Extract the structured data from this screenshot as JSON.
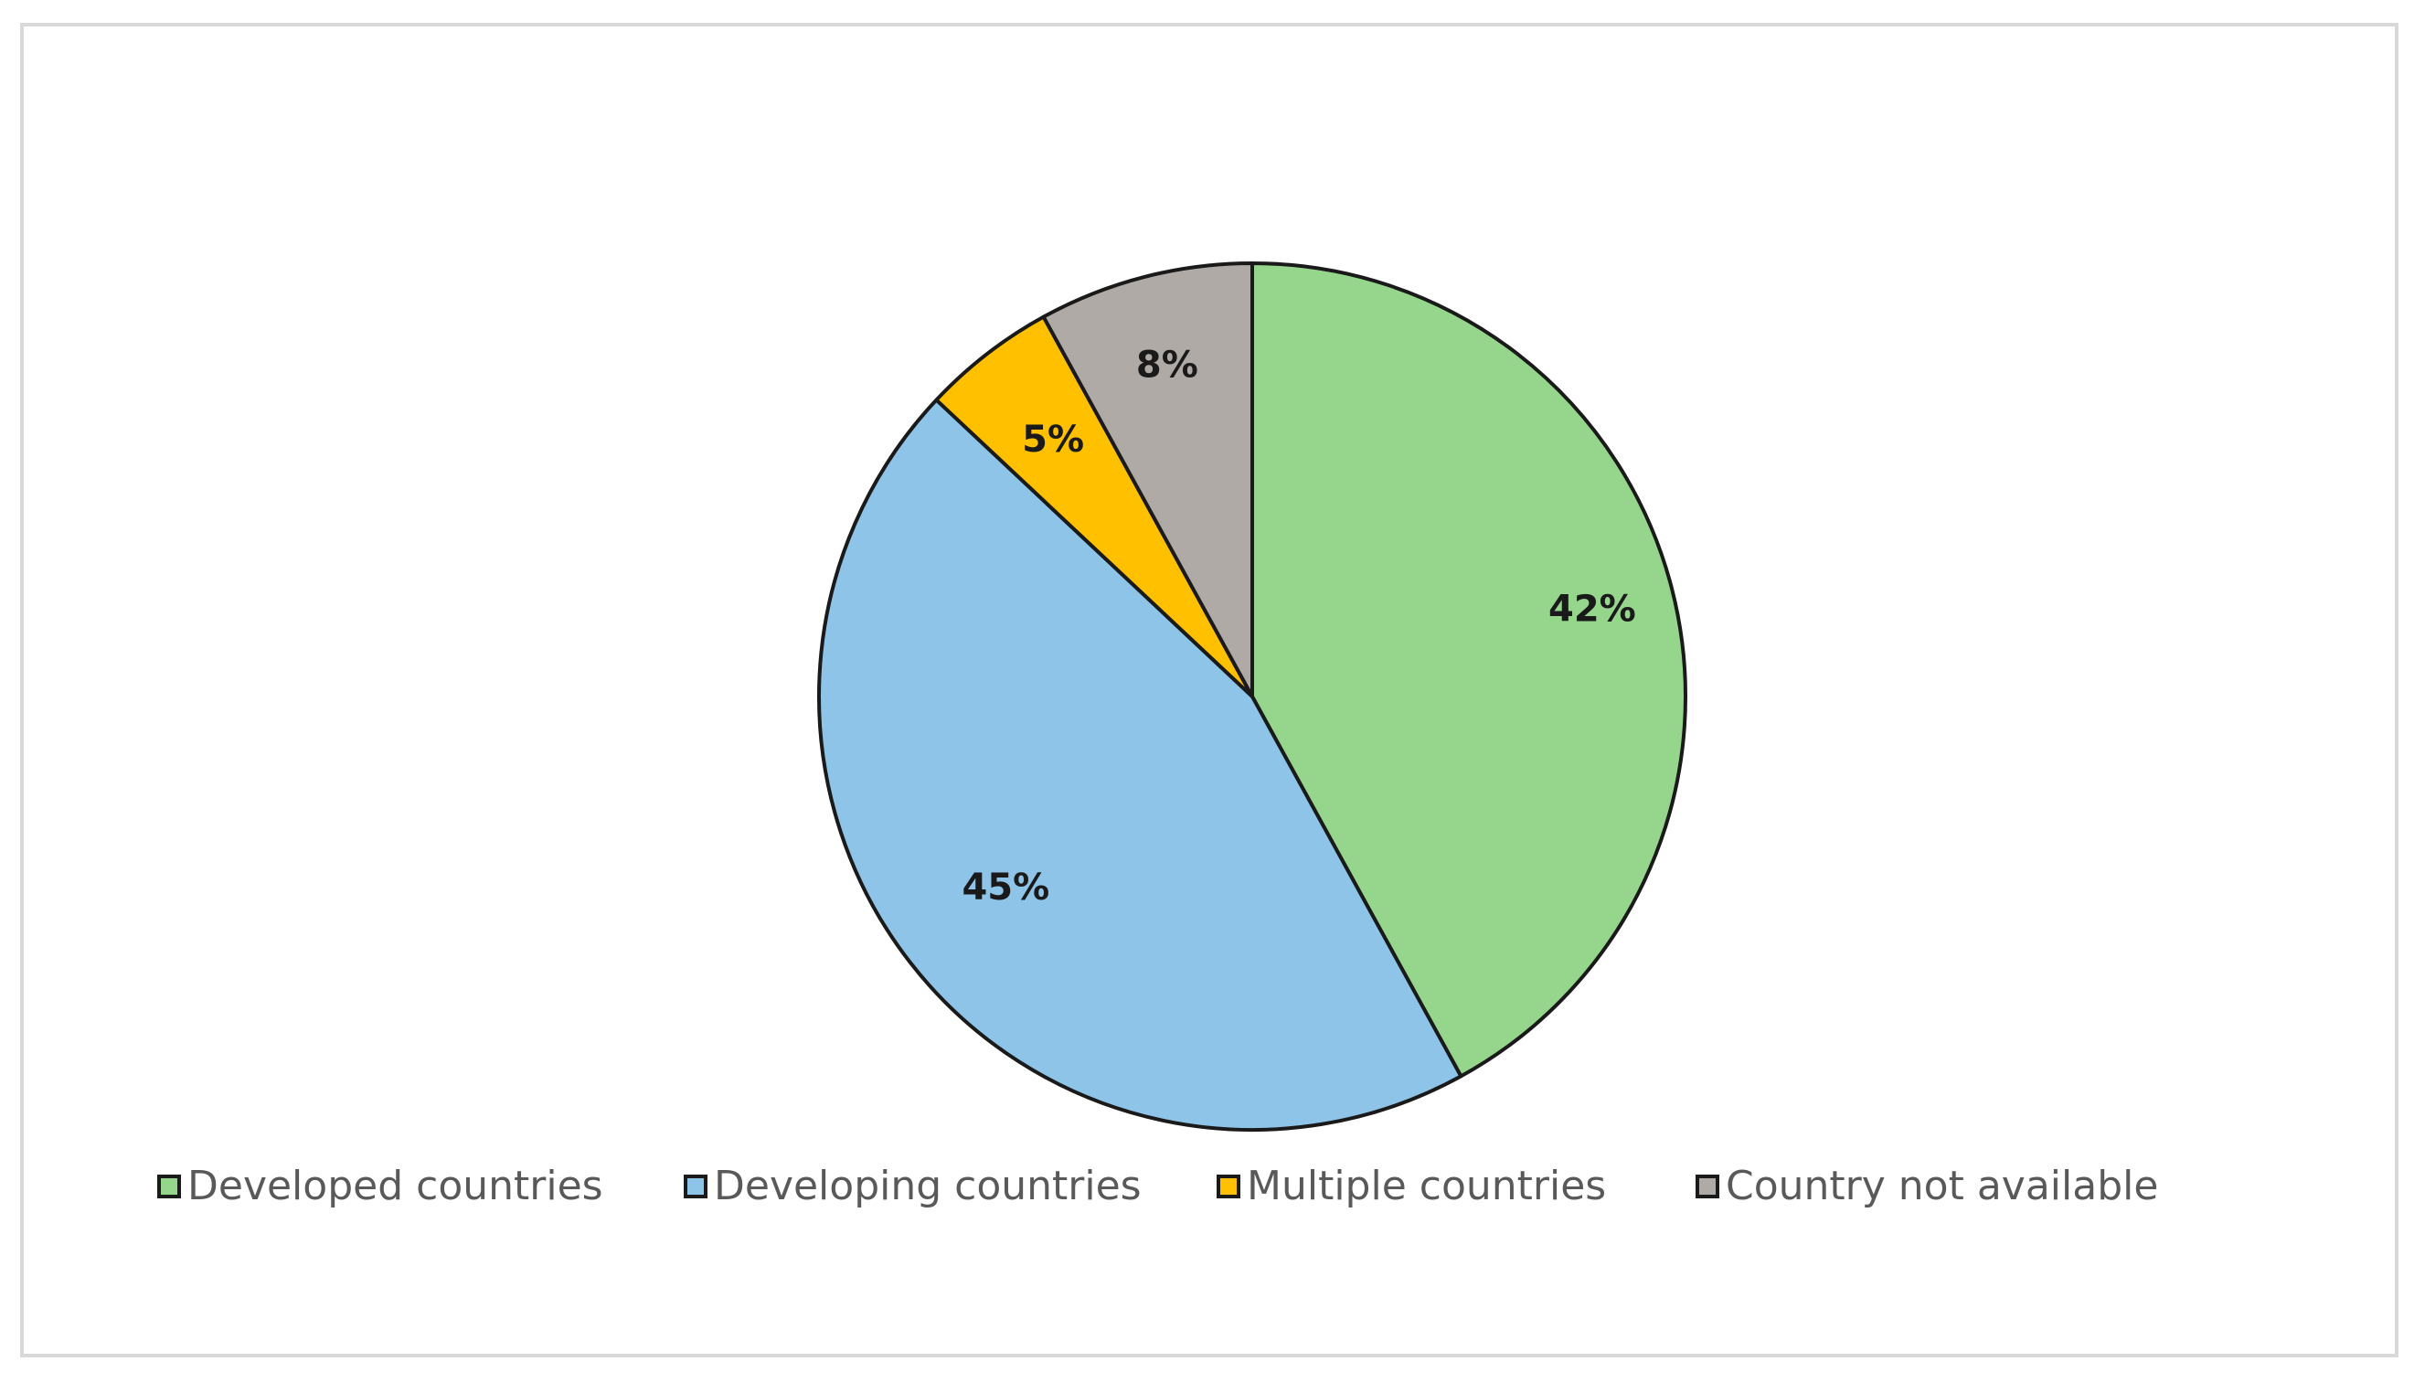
{
  "chart_data": {
    "type": "pie",
    "title": "",
    "slices": [
      {
        "name": "Developed countries",
        "value": 42,
        "label": "42%",
        "color": "#95d58c"
      },
      {
        "name": "Developing countries",
        "value": 45,
        "label": "45%",
        "color": "#8dc4e8"
      },
      {
        "name": "Multiple countries",
        "value": 5,
        "label": "5%",
        "color": "#ffc000"
      },
      {
        "name": "Country not available",
        "value": 8,
        "label": "8%",
        "color": "#b0aaa6"
      }
    ],
    "legend_position": "bottom"
  }
}
